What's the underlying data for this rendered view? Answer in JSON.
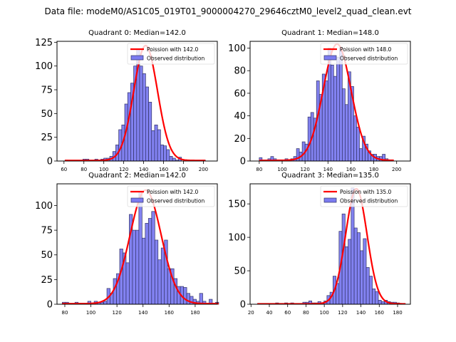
{
  "figure": {
    "suptitle": "Data file: modeM0/AS1C05_019T01_9000004270_29646cztM0_level2_quad_clean.evt"
  },
  "colors": {
    "bar_fill": "#7b7bf0",
    "bar_edge": "#333366",
    "poisson_line": "#ff0000"
  },
  "chart_data": [
    {
      "type": "bar",
      "title": "Quadrant 0: Median=142.0",
      "median": 142.0,
      "legend": [
        "Poission with 142.0",
        "Observed distribution"
      ],
      "legend_position": "upper-right",
      "xlim": [
        53,
        214
      ],
      "ylim": [
        0,
        126
      ],
      "xticks": [
        60,
        80,
        100,
        120,
        140,
        160,
        180,
        200
      ],
      "yticks": [
        0,
        25,
        50,
        75,
        100,
        125
      ],
      "bin_start": 61,
      "bin_width": 3,
      "values": [
        1,
        0,
        0,
        0,
        0,
        0,
        2,
        2,
        0,
        1,
        2,
        1,
        2,
        3,
        3,
        5,
        10,
        17,
        33,
        38,
        60,
        72,
        82,
        100,
        118,
        100,
        92,
        78,
        62,
        32,
        38,
        33,
        17,
        16,
        12,
        5,
        3,
        1,
        4,
        0,
        0,
        0,
        0,
        0,
        0,
        0,
        1
      ],
      "poisson_peak": 121
    },
    {
      "type": "bar",
      "title": "Quadrant 1: Median=148.0",
      "median": 148.0,
      "legend": [
        "Poission with 148.0",
        "Observed distribution"
      ],
      "legend_position": "upper-right",
      "xlim": [
        72,
        212
      ],
      "ylim": [
        0,
        106
      ],
      "xticks": [
        80,
        100,
        120,
        140,
        160,
        180,
        200
      ],
      "yticks": [
        0,
        20,
        40,
        60,
        80,
        100
      ],
      "bin_start": 80,
      "bin_width": 2.5,
      "values": [
        3,
        0,
        0,
        2,
        4,
        2,
        0,
        0,
        0,
        2,
        0,
        2,
        4,
        11,
        8,
        17,
        15,
        39,
        43,
        38,
        71,
        59,
        77,
        71,
        100,
        85,
        75,
        92,
        100,
        64,
        50,
        79,
        66,
        40,
        30,
        11,
        22,
        15,
        9,
        6,
        6,
        4,
        4,
        6,
        2,
        0,
        0
      ],
      "poisson_peak": 103
    },
    {
      "type": "bar",
      "title": "Quadrant 2: Median=142.0",
      "median": 142.0,
      "legend": [
        "Poission with 142.0",
        "Observed distribution"
      ],
      "legend_position": "upper-right",
      "xlim": [
        74,
        197
      ],
      "ylim": [
        0,
        122
      ],
      "xticks": [
        80,
        100,
        120,
        140,
        160,
        180
      ],
      "yticks": [
        0,
        25,
        50,
        75,
        100
      ],
      "bin_start": 78,
      "bin_width": 2.45,
      "values": [
        2,
        2,
        0,
        0,
        2,
        0,
        0,
        0,
        3,
        0,
        3,
        2,
        2,
        3,
        16,
        11,
        26,
        31,
        56,
        52,
        42,
        91,
        75,
        75,
        114,
        67,
        82,
        87,
        94,
        65,
        45,
        57,
        65,
        36,
        36,
        26,
        18,
        18,
        17,
        11,
        8,
        5,
        3,
        11,
        3,
        0,
        5,
        0,
        2
      ],
      "poisson_peak": 115
    },
    {
      "type": "bar",
      "title": "Quadrant 3: Median=135.0",
      "median": 135.0,
      "legend": [
        "Poission with 135.0",
        "Observed distribution"
      ],
      "legend_position": "upper-right",
      "xlim": [
        19,
        194
      ],
      "ylim": [
        0,
        180
      ],
      "xticks": [
        20,
        40,
        60,
        80,
        100,
        120,
        140,
        160,
        180
      ],
      "yticks": [
        0,
        50,
        100,
        150
      ],
      "bin_start": 27,
      "bin_width": 3.3,
      "values": [
        1,
        0,
        0,
        0,
        0,
        0,
        2,
        0,
        0,
        2,
        0,
        2,
        0,
        1,
        0,
        3,
        3,
        5,
        2,
        2,
        4,
        2,
        5,
        13,
        18,
        42,
        31,
        109,
        135,
        86,
        97,
        174,
        114,
        107,
        80,
        98,
        55,
        42,
        23,
        19,
        6,
        4,
        6,
        4,
        3,
        3,
        2,
        0,
        0
      ],
      "poisson_peak": 172
    }
  ]
}
